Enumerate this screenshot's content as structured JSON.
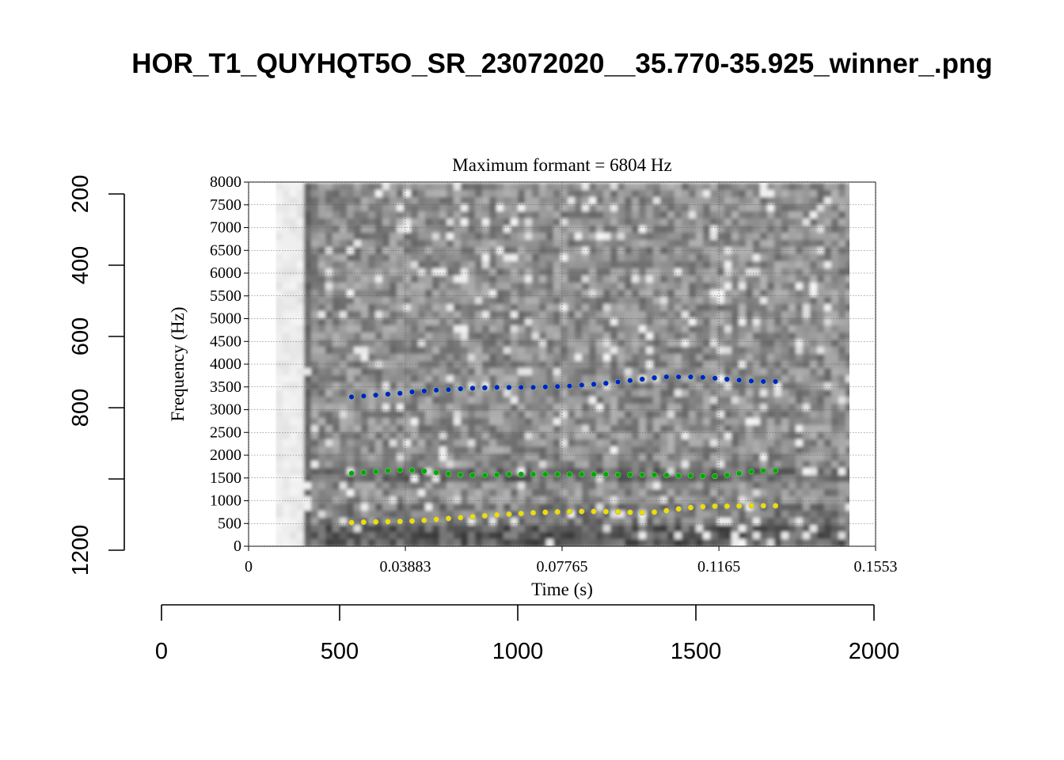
{
  "outer": {
    "title": "HOR_T1_QUYHQT5O_SR_23072020__35.770-35.925_winner_.png",
    "x_ticks": [
      "0",
      "500",
      "1000",
      "1500",
      "2000"
    ],
    "y_ticks": [
      "200",
      "400",
      "600",
      "800",
      "1200"
    ],
    "x_range": [
      0,
      2000
    ],
    "y_range": [
      1200,
      200
    ]
  },
  "chart_data": {
    "type": "scatter",
    "title": "Maximum formant = 6804 Hz",
    "xlabel": "Time (s)",
    "ylabel": "Frequency (Hz)",
    "xlim": [
      0,
      0.1553
    ],
    "ylim": [
      0,
      8000
    ],
    "x_tick_labels": [
      "0",
      "0.03883",
      "0.07765",
      "0.1165",
      "0.1553"
    ],
    "y_tick_labels": [
      "0",
      "500",
      "1000",
      "1500",
      "2000",
      "2500",
      "3000",
      "3500",
      "4000",
      "4500",
      "5000",
      "5500",
      "6000",
      "6500",
      "7000",
      "7500",
      "8000"
    ],
    "grid": true,
    "background": "grayscale spectrogram",
    "series": [
      {
        "color": "#0022cc",
        "x": [
          0.0255,
          0.0285,
          0.0315,
          0.0345,
          0.0375,
          0.0405,
          0.0435,
          0.0465,
          0.0495,
          0.0525,
          0.0555,
          0.0585,
          0.0615,
          0.0645,
          0.0675,
          0.0705,
          0.0735,
          0.0765,
          0.0795,
          0.0825,
          0.0855,
          0.0885,
          0.0915,
          0.0945,
          0.0975,
          0.1005,
          0.1035,
          0.1065,
          0.1095,
          0.1125,
          0.1155,
          0.1185,
          0.1215,
          0.1245,
          0.1275,
          0.1305
        ],
        "values": [
          3280,
          3300,
          3320,
          3340,
          3360,
          3390,
          3410,
          3430,
          3440,
          3460,
          3470,
          3480,
          3490,
          3490,
          3490,
          3490,
          3500,
          3510,
          3520,
          3540,
          3560,
          3580,
          3610,
          3640,
          3670,
          3700,
          3720,
          3720,
          3720,
          3710,
          3690,
          3670,
          3650,
          3630,
          3620,
          3620
        ]
      },
      {
        "color": "#00aa00",
        "x": [
          0.0255,
          0.0285,
          0.0315,
          0.0345,
          0.0375,
          0.0405,
          0.0435,
          0.0465,
          0.0495,
          0.0525,
          0.0555,
          0.0585,
          0.0615,
          0.0645,
          0.0675,
          0.0705,
          0.0735,
          0.0765,
          0.0795,
          0.0825,
          0.0855,
          0.0885,
          0.0915,
          0.0945,
          0.0975,
          0.1005,
          0.1035,
          0.1065,
          0.1095,
          0.1125,
          0.1155,
          0.1185,
          0.1215,
          0.1245,
          0.1275,
          0.1305
        ],
        "values": [
          1600,
          1620,
          1640,
          1660,
          1670,
          1670,
          1650,
          1620,
          1590,
          1570,
          1560,
          1560,
          1570,
          1580,
          1580,
          1580,
          1580,
          1580,
          1580,
          1580,
          1580,
          1580,
          1570,
          1570,
          1570,
          1570,
          1560,
          1550,
          1550,
          1540,
          1540,
          1560,
          1600,
          1640,
          1660,
          1660
        ]
      },
      {
        "color": "#ffd700",
        "x": [
          0.0255,
          0.0285,
          0.0315,
          0.0345,
          0.0375,
          0.0405,
          0.0435,
          0.0465,
          0.0495,
          0.0525,
          0.0555,
          0.0585,
          0.0615,
          0.0645,
          0.0675,
          0.0705,
          0.0735,
          0.0765,
          0.0795,
          0.0825,
          0.0855,
          0.0885,
          0.0915,
          0.0945,
          0.0975,
          0.1005,
          0.1035,
          0.1065,
          0.1095,
          0.1125,
          0.1155,
          0.1185,
          0.1215,
          0.1245,
          0.1275,
          0.1305
        ],
        "values": [
          520,
          530,
          535,
          540,
          545,
          555,
          570,
          590,
          610,
          630,
          650,
          670,
          690,
          705,
          720,
          735,
          745,
          755,
          760,
          765,
          765,
          760,
          755,
          745,
          740,
          750,
          780,
          820,
          850,
          870,
          880,
          880,
          885,
          890,
          890,
          890
        ]
      }
    ]
  }
}
